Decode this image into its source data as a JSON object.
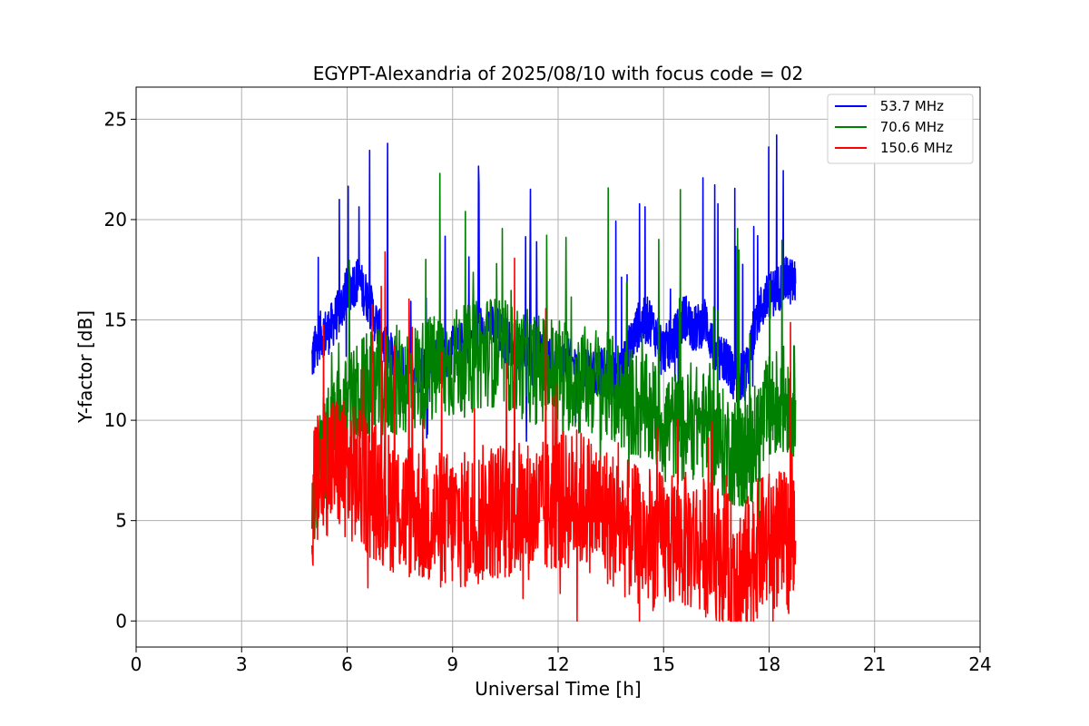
{
  "chart_data": {
    "type": "line",
    "title": "EGYPT-Alexandria of 2025/08/10 with focus code = 02",
    "xlabel": "Universal Time [h]",
    "ylabel": "Y-factor [dB]",
    "xlim": [
      0,
      24
    ],
    "ylim": [
      -1.3,
      26.6
    ],
    "xticks": [
      0,
      3,
      6,
      9,
      12,
      15,
      18,
      21,
      24
    ],
    "yticks": [
      0,
      5,
      10,
      15,
      20,
      25
    ],
    "xtick_labels": [
      "0",
      "3",
      "6",
      "9",
      "12",
      "15",
      "18",
      "21",
      "24"
    ],
    "ytick_labels": [
      "0",
      "5",
      "10",
      "15",
      "20",
      "25"
    ],
    "grid": true,
    "legend_position": "top-right",
    "series": [
      {
        "name": " 53.7 MHz",
        "color": "#0000ff",
        "x": [
          5.0,
          5.2,
          5.5,
          5.8,
          6.0,
          6.3,
          6.6,
          7.0,
          7.5,
          8.0,
          8.5,
          9.0,
          9.5,
          10.0,
          10.5,
          11.0,
          11.5,
          12.0,
          12.5,
          13.0,
          13.5,
          13.8,
          14.0,
          14.3,
          14.6,
          15.0,
          15.3,
          15.6,
          15.9,
          16.2,
          16.5,
          16.8,
          17.0,
          17.2,
          17.4,
          17.6,
          17.9,
          18.2,
          18.5,
          18.75
        ],
        "y": [
          13.0,
          14.2,
          14.5,
          15.5,
          16.5,
          17.0,
          16.0,
          14.0,
          12.5,
          12.5,
          13.0,
          13.5,
          14.0,
          15.0,
          14.0,
          13.5,
          13.2,
          13.0,
          12.8,
          12.5,
          12.3,
          12.2,
          13.5,
          14.8,
          15.0,
          13.5,
          14.0,
          15.2,
          14.5,
          15.0,
          13.0,
          13.0,
          12.0,
          12.2,
          12.5,
          15.0,
          16.0,
          16.5,
          17.0,
          16.8
        ]
      },
      {
        "name": " 70.6 MHz",
        "color": "#008000",
        "x": [
          5.0,
          5.5,
          6.0,
          6.5,
          7.0,
          7.5,
          8.0,
          8.5,
          9.0,
          9.5,
          10.0,
          10.5,
          11.0,
          11.5,
          12.0,
          12.5,
          13.0,
          13.5,
          14.0,
          14.5,
          15.0,
          15.5,
          16.0,
          16.5,
          17.0,
          17.3,
          17.6,
          18.0,
          18.3,
          18.75
        ],
        "y": [
          6.5,
          9.0,
          10.5,
          11.5,
          11.8,
          12.0,
          12.2,
          12.5,
          12.8,
          13.0,
          13.5,
          13.2,
          12.8,
          12.5,
          12.5,
          12.0,
          12.0,
          11.5,
          11.0,
          10.5,
          10.0,
          9.5,
          10.0,
          9.0,
          8.5,
          8.0,
          9.0,
          10.5,
          11.0,
          11.0
        ]
      },
      {
        "name": "150.6 MHz",
        "color": "#ff0000",
        "x": [
          5.0,
          5.3,
          5.6,
          6.0,
          6.4,
          6.8,
          7.2,
          7.6,
          8.0,
          8.4,
          8.8,
          9.2,
          9.6,
          10.0,
          10.4,
          10.8,
          11.2,
          11.6,
          12.0,
          12.4,
          12.8,
          13.2,
          13.6,
          14.0,
          14.5,
          15.0,
          15.5,
          16.0,
          16.5,
          17.0,
          17.3,
          17.6,
          18.0,
          18.4,
          18.75
        ],
        "y": [
          6.0,
          7.5,
          8.0,
          7.5,
          7.0,
          6.5,
          6.0,
          5.5,
          5.5,
          5.0,
          5.0,
          5.0,
          5.0,
          5.5,
          5.5,
          5.5,
          5.5,
          5.5,
          6.0,
          6.0,
          6.0,
          5.5,
          5.0,
          4.5,
          4.0,
          4.0,
          4.0,
          3.8,
          3.5,
          2.5,
          2.5,
          3.5,
          4.0,
          4.0,
          4.0
        ]
      }
    ]
  }
}
